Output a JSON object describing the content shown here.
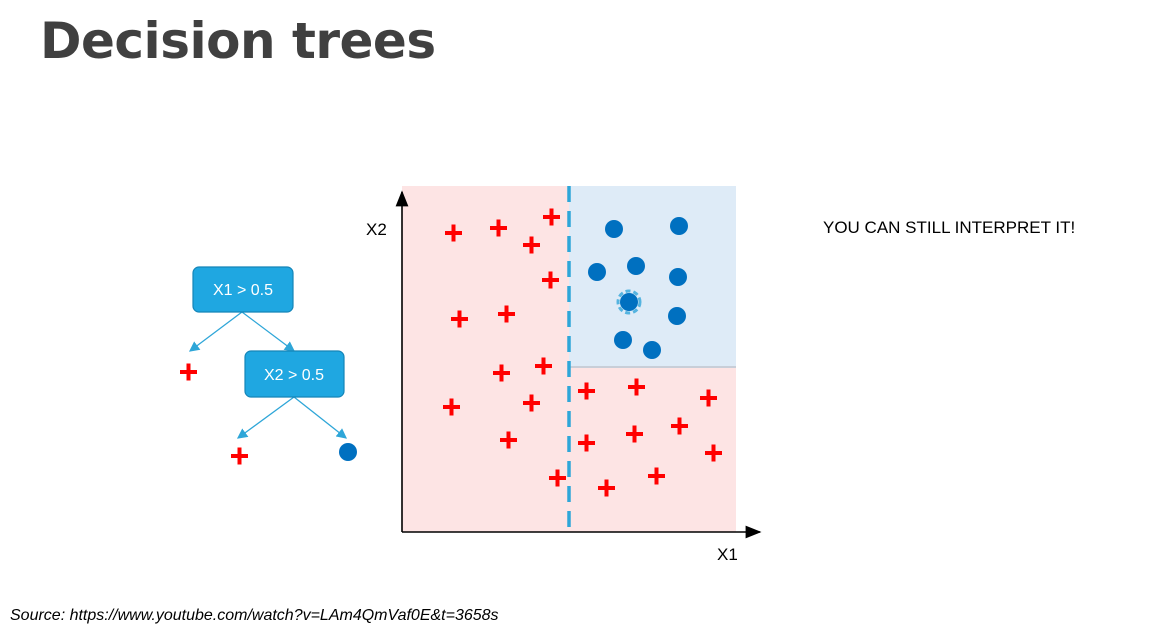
{
  "slide": {
    "title": "Decision trees",
    "note": "YOU CAN STILL INTERPRET IT!",
    "source": "Source: https://www.youtube.com/watch?v=LAm4QmVaf0E&t=3658s"
  },
  "tree": {
    "root_label": "X1 > 0.5",
    "child_label": "X2 > 0.5",
    "leaf_left": "plus",
    "leaf_mid": "plus",
    "leaf_right": "circle"
  },
  "plot": {
    "x_label": "X1",
    "y_label": "X2"
  },
  "colors": {
    "plus": "#ff0000",
    "circle": "#0070c0",
    "node_fill": "#1fa7e1",
    "region_red": "#fde4e4",
    "region_blue": "#deebf7",
    "split_line": "#2ea6d8"
  }
}
